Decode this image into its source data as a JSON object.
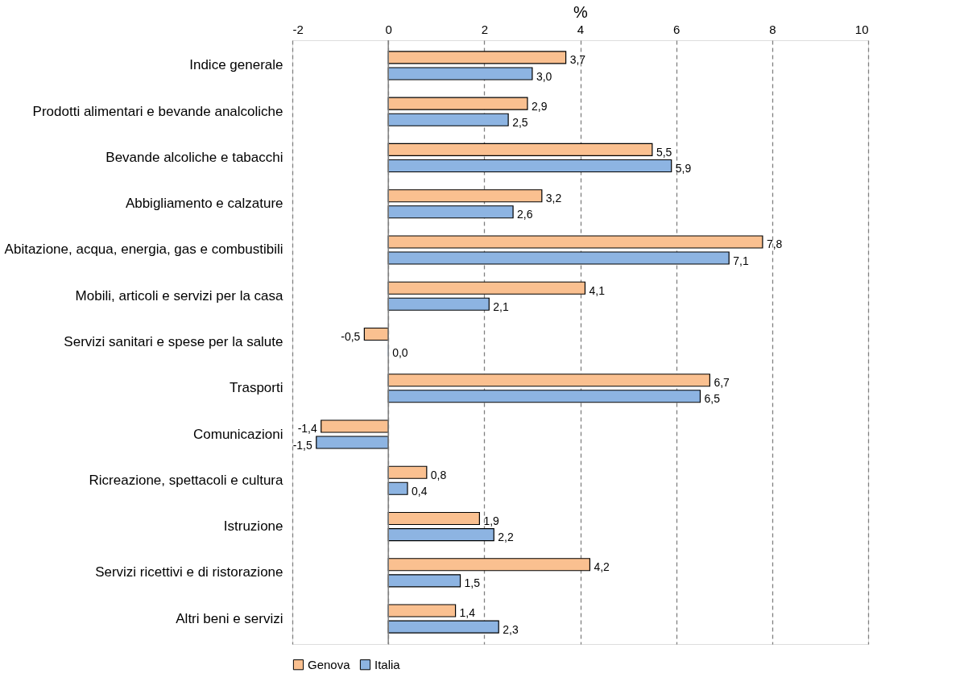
{
  "chart_data": {
    "type": "bar",
    "orientation": "horizontal",
    "xlabel": "%",
    "categories": [
      "Indice generale",
      "Prodotti alimentari e bevande analcoliche",
      "Bevande alcoliche e tabacchi",
      "Abbigliamento e calzature",
      "Abitazione, acqua, energia, gas e combustibili",
      "Mobili, articoli e servizi per la casa",
      "Servizi sanitari e spese per la salute",
      "Trasporti",
      "Comunicazioni",
      "Ricreazione, spettacoli e cultura",
      "Istruzione",
      "Servizi ricettivi e di ristorazione",
      "Altri beni e servizi"
    ],
    "series": [
      {
        "name": "Genova",
        "color": "#fac090",
        "values": [
          3.7,
          2.9,
          5.5,
          3.2,
          7.8,
          4.1,
          -0.5,
          6.7,
          -1.4,
          0.8,
          1.9,
          4.2,
          1.4
        ],
        "value_labels": [
          "3,7",
          "2,9",
          "5,5",
          "3,2",
          "7,8",
          "4,1",
          "-0,5",
          "6,7",
          "-1,4",
          "0,8",
          "1,9",
          "4,2",
          "1,4"
        ]
      },
      {
        "name": "Italia",
        "color": "#8db4e2",
        "values": [
          3.0,
          2.5,
          5.9,
          2.6,
          7.1,
          2.1,
          0.0,
          6.5,
          -1.5,
          0.4,
          2.2,
          1.5,
          2.3
        ],
        "value_labels": [
          "3,0",
          "2,5",
          "5,9",
          "2,6",
          "7,1",
          "2,1",
          "0,0",
          "6,5",
          "-1,5",
          "0,4",
          "2,2",
          "1,5",
          "2,3"
        ]
      }
    ],
    "xlim": [
      -2,
      10
    ],
    "xticks": [
      -2,
      0,
      2,
      4,
      6,
      8,
      10
    ],
    "grid": "x",
    "legend": "bottom",
    "ref_lines": [
      {
        "axis": "x",
        "value": 0,
        "color": "#808080"
      }
    ]
  }
}
